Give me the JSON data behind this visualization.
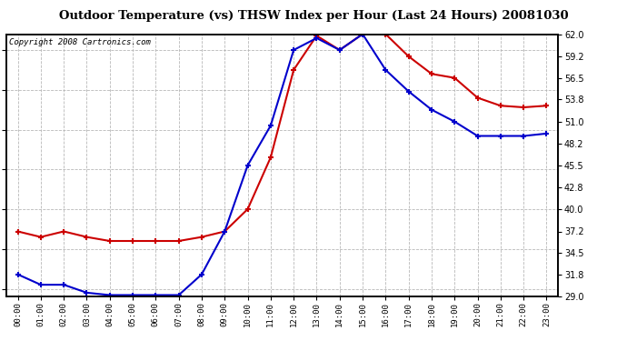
{
  "title": "Outdoor Temperature (vs) THSW Index per Hour (Last 24 Hours) 20081030",
  "copyright": "Copyright 2008 Cartronics.com",
  "hours": [
    "00:00",
    "01:00",
    "02:00",
    "03:00",
    "04:00",
    "05:00",
    "06:00",
    "07:00",
    "08:00",
    "09:00",
    "10:00",
    "11:00",
    "12:00",
    "13:00",
    "14:00",
    "15:00",
    "16:00",
    "17:00",
    "18:00",
    "19:00",
    "20:00",
    "21:00",
    "22:00",
    "23:00"
  ],
  "temp": [
    31.8,
    30.5,
    30.5,
    29.5,
    29.2,
    29.2,
    29.2,
    29.2,
    31.8,
    37.2,
    45.5,
    50.5,
    60.0,
    61.5,
    60.0,
    62.0,
    57.5,
    54.8,
    52.5,
    51.0,
    49.2,
    49.2,
    49.2,
    49.5
  ],
  "thsw": [
    37.2,
    36.5,
    37.2,
    36.5,
    36.0,
    36.0,
    36.0,
    36.0,
    36.5,
    37.2,
    40.0,
    46.5,
    57.5,
    61.8,
    60.0,
    62.0,
    62.0,
    59.2,
    57.0,
    56.5,
    54.0,
    53.0,
    52.8,
    53.0
  ],
  "temp_color": "#0000cc",
  "thsw_color": "#cc0000",
  "bg_color": "#ffffff",
  "plot_bg_color": "#ffffff",
  "grid_color": "#b0b0b0",
  "ylim_min": 29.0,
  "ylim_max": 62.0,
  "yticks": [
    29.0,
    31.8,
    34.5,
    37.2,
    40.0,
    42.8,
    45.5,
    48.2,
    51.0,
    53.8,
    56.5,
    59.2,
    62.0
  ]
}
